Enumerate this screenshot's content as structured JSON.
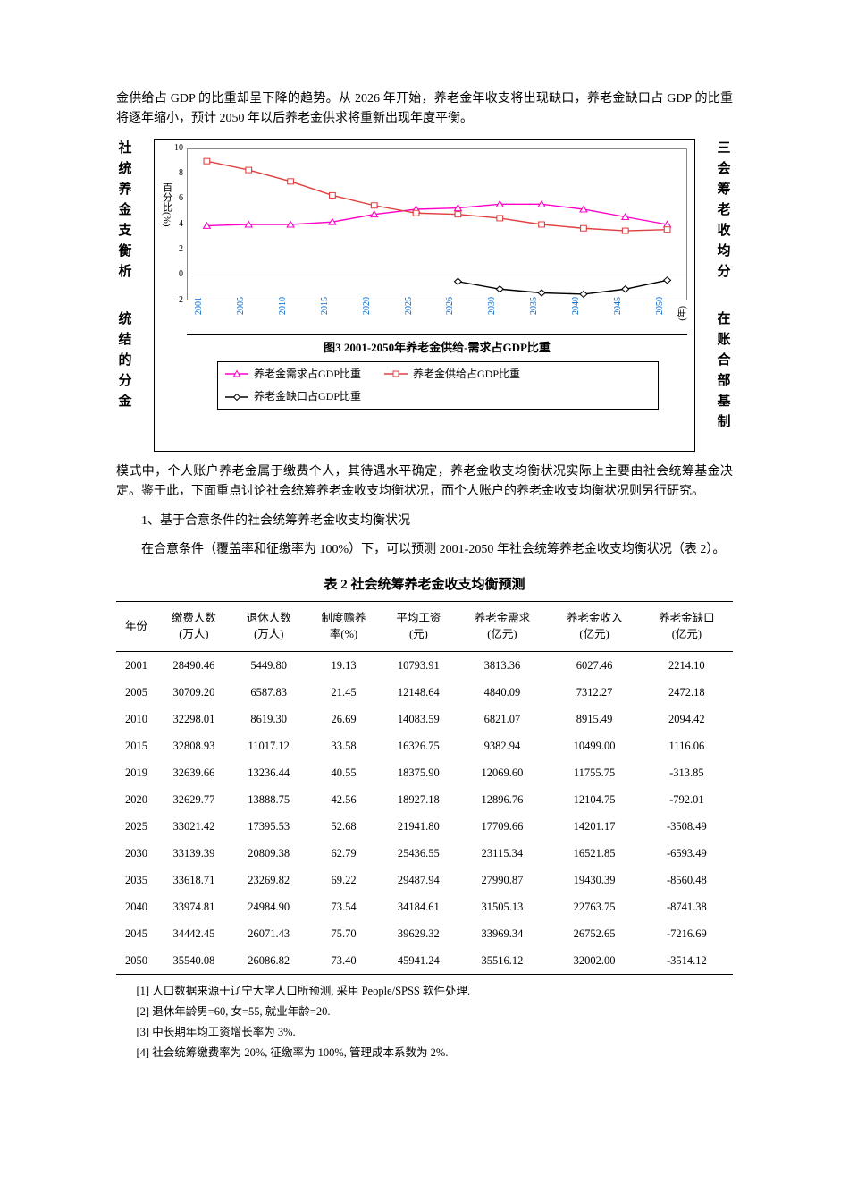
{
  "intro_para": "金供给占 GDP 的比重却呈下降的趋势。从 2026 年开始，养老金年收支将出现缺口，养老金缺口占 GDP 的比重将逐年缩小，预计 2050 年以后养老金供求将重新出现年度平衡。",
  "left_col_chars": "社统养金支衡析",
  "right_col_chars": "三会筹老收均分",
  "left_col_line2": "统结的分金",
  "right_col_line2": "在账合部基制",
  "chart": {
    "ylabel": "百分比(%)",
    "x_unit": "(年)",
    "title": "图3  2001-2050年养老金供给-需求占GDP比重",
    "ylim": [
      -2,
      10
    ],
    "ytick_step": 2,
    "yticks": [
      -2,
      0,
      2,
      4,
      6,
      8,
      10
    ],
    "x_categories": [
      "2001",
      "2005",
      "2010",
      "2015",
      "2020",
      "2025",
      "2026",
      "2030",
      "2035",
      "2040",
      "2045",
      "2050"
    ],
    "series": [
      {
        "name": "养老金需求占GDP比重",
        "color": "#ff00c8",
        "marker": "triangle",
        "values": [
          3.9,
          4.0,
          4.0,
          4.2,
          4.8,
          5.2,
          5.3,
          5.6,
          5.6,
          5.2,
          4.6,
          4.0
        ]
      },
      {
        "name": "养老金供给占GDP比重",
        "color": "#e04040",
        "marker": "square",
        "values": [
          9.0,
          8.3,
          7.4,
          6.3,
          5.5,
          4.9,
          4.8,
          4.5,
          4.0,
          3.7,
          3.5,
          3.6
        ]
      },
      {
        "name": "养老金缺口占GDP比重",
        "color": "#000000",
        "marker": "diamond",
        "values": [
          null,
          null,
          null,
          null,
          null,
          null,
          -0.5,
          -1.1,
          -1.4,
          -1.5,
          -1.1,
          -0.4
        ]
      }
    ]
  },
  "body_para1": "模式中，个人账户养老金属于缴费个人，其待遇水平确定，养老金收支均衡状况实际上主要由社会统筹基金决定。鉴于此，下面重点讨论社会统筹养老金收支均衡状况，而个人账户的养老金收支均衡状况则另行研究。",
  "body_sub1": "1、基于合意条件的社会统筹养老金收支均衡状况",
  "body_para2": "在合意条件（覆盖率和征缴率为 100%）下，可以预测 2001-2050 年社会统筹养老金收支均衡状况（表 2）。",
  "table_title": "表 2 社会统筹养老金收支均衡预测",
  "table": {
    "columns": [
      "年份",
      "缴费人数\n(万人)",
      "退休人数\n(万人)",
      "制度赡养\n率(%)",
      "平均工资\n(元)",
      "养老金需求\n(亿元)",
      "养老金收入\n(亿元)",
      "养老金缺口\n(亿元)"
    ],
    "rows": [
      [
        "2001",
        "28490.46",
        "5449.80",
        "19.13",
        "10793.91",
        "3813.36",
        "6027.46",
        "2214.10"
      ],
      [
        "2005",
        "30709.20",
        "6587.83",
        "21.45",
        "12148.64",
        "4840.09",
        "7312.27",
        "2472.18"
      ],
      [
        "2010",
        "32298.01",
        "8619.30",
        "26.69",
        "14083.59",
        "6821.07",
        "8915.49",
        "2094.42"
      ],
      [
        "2015",
        "32808.93",
        "11017.12",
        "33.58",
        "16326.75",
        "9382.94",
        "10499.00",
        "1116.06"
      ],
      [
        "2019",
        "32639.66",
        "13236.44",
        "40.55",
        "18375.90",
        "12069.60",
        "11755.75",
        "-313.85"
      ],
      [
        "2020",
        "32629.77",
        "13888.75",
        "42.56",
        "18927.18",
        "12896.76",
        "12104.75",
        "-792.01"
      ],
      [
        "2025",
        "33021.42",
        "17395.53",
        "52.68",
        "21941.80",
        "17709.66",
        "14201.17",
        "-3508.49"
      ],
      [
        "2030",
        "33139.39",
        "20809.38",
        "62.79",
        "25436.55",
        "23115.34",
        "16521.85",
        "-6593.49"
      ],
      [
        "2035",
        "33618.71",
        "23269.82",
        "69.22",
        "29487.94",
        "27990.87",
        "19430.39",
        "-8560.48"
      ],
      [
        "2040",
        "33974.81",
        "24984.90",
        "73.54",
        "34184.61",
        "31505.13",
        "22763.75",
        "-8741.38"
      ],
      [
        "2045",
        "34442.45",
        "26071.43",
        "75.70",
        "39629.32",
        "33969.34",
        "26752.65",
        "-7216.69"
      ],
      [
        "2050",
        "35540.08",
        "26086.82",
        "73.40",
        "45941.24",
        "35516.12",
        "32002.00",
        "-3514.12"
      ]
    ]
  },
  "footnotes": [
    "[1] 人口数据来源于辽宁大学人口所预测, 采用 People/SPSS 软件处理.",
    "[2] 退休年龄男=60, 女=55, 就业年龄=20.",
    "[3] 中长期年均工资增长率为 3%.",
    "[4] 社会统筹缴费率为 20%, 征缴率为 100%, 管理成本系数为 2%."
  ]
}
